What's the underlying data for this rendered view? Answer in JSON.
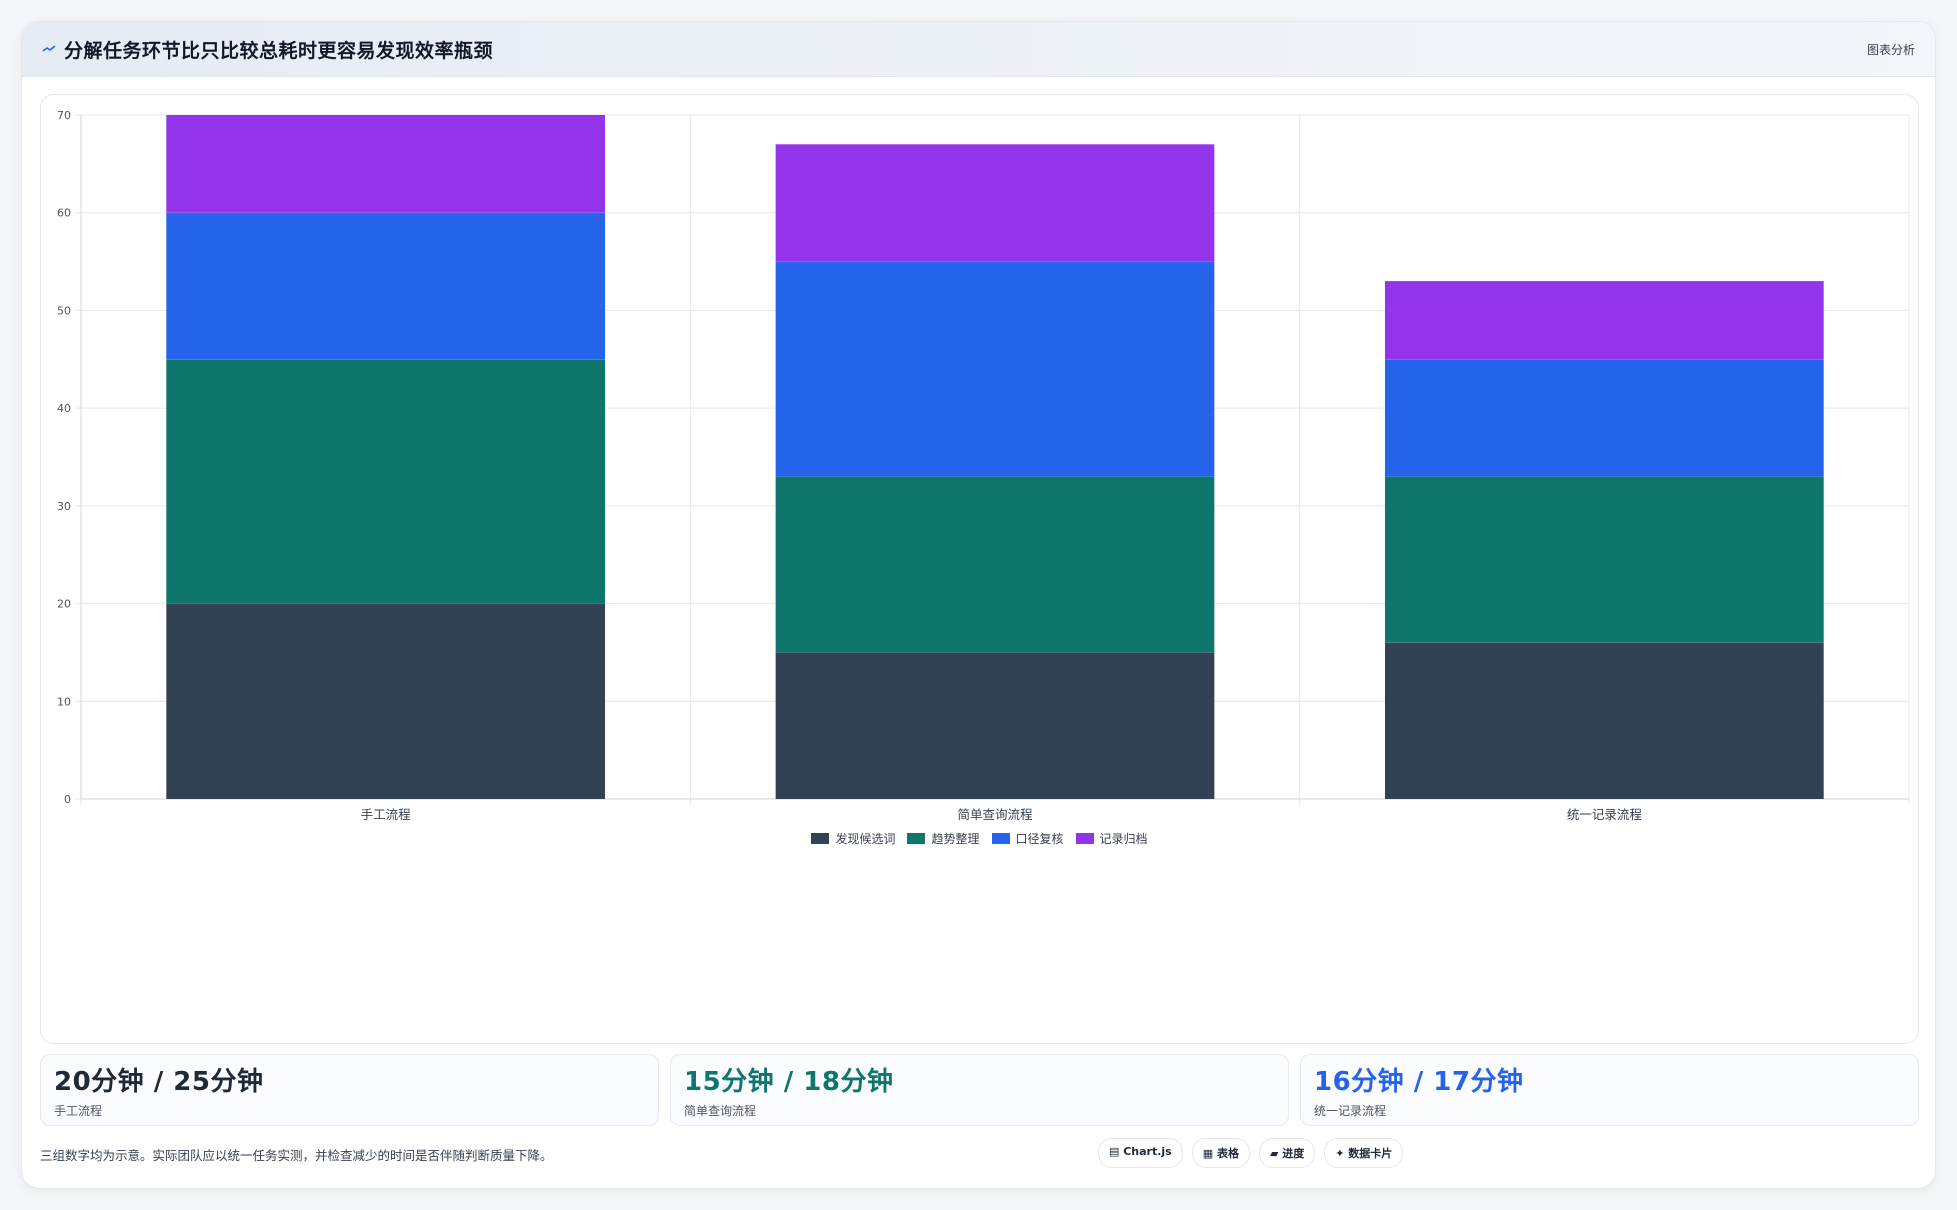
{
  "header": {
    "title": "分解任务环节比只比较总耗时更容易发现效率瓶颈",
    "action_label": "图表分析"
  },
  "chart_data": {
    "type": "bar",
    "stacked": true,
    "title": "",
    "xlabel": "",
    "ylabel": "",
    "categories": [
      "手工流程",
      "简单查询流程",
      "统一记录流程"
    ],
    "series": [
      {
        "name": "发现候选词",
        "values": [
          20,
          15,
          16
        ],
        "color": "#334155"
      },
      {
        "name": "趋势整理",
        "values": [
          25,
          18,
          17
        ],
        "color": "#0f766e"
      },
      {
        "name": "口径复核",
        "values": [
          15,
          22,
          12
        ],
        "color": "#2563eb"
      },
      {
        "name": "记录归档",
        "values": [
          10,
          12,
          8
        ],
        "color": "#9333ea"
      }
    ],
    "ylim": [
      0,
      70
    ],
    "yticks": [
      0,
      10,
      20,
      30,
      40,
      50,
      60,
      70
    ],
    "grid": true,
    "legend_position": "bottom"
  },
  "stats": [
    {
      "value": "20分钟 / 25分钟",
      "label": "手工流程",
      "color": "#1f2937"
    },
    {
      "value": "15分钟 / 18分钟",
      "label": "简单查询流程",
      "color": "#0f766e"
    },
    {
      "value": "16分钟 / 17分钟",
      "label": "统一记录流程",
      "color": "#2563eb"
    }
  ],
  "footer": {
    "note": "三组数字均为示意。实际团队应以统一任务实测，并检查减少的时间是否伴随判断质量下降。",
    "tags": [
      "▤ Chart.js",
      "▦ 表格",
      "▰ 进度",
      "✦ 数据卡片"
    ]
  }
}
